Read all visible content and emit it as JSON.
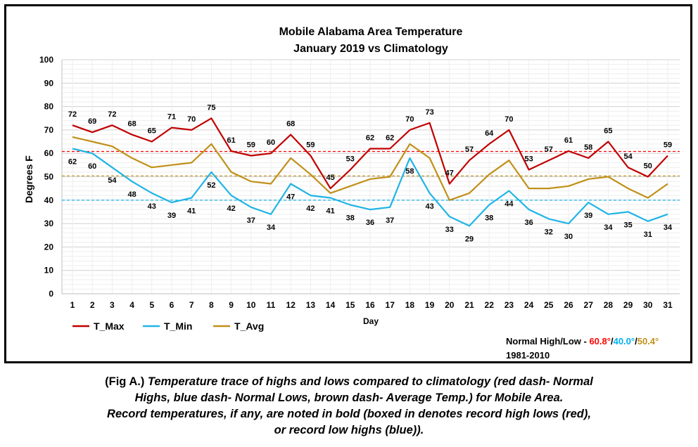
{
  "chart_data": {
    "type": "line",
    "title": [
      "Mobile Alabama Area Temperature",
      "January 2019 vs Climatology"
    ],
    "xlabel": "Day",
    "ylabel": "Degrees F",
    "ylim": [
      0,
      100
    ],
    "yticks": [
      0,
      10,
      20,
      30,
      40,
      50,
      60,
      70,
      80,
      90,
      100
    ],
    "grid": true,
    "legend_position": "bottom-left",
    "x": [
      1,
      2,
      3,
      4,
      5,
      6,
      7,
      8,
      9,
      10,
      11,
      12,
      13,
      14,
      15,
      16,
      17,
      18,
      19,
      20,
      21,
      22,
      23,
      24,
      25,
      26,
      27,
      28,
      29,
      30,
      31
    ],
    "series": [
      {
        "name": "T_Max",
        "color": "#c00000",
        "values": [
          72,
          69,
          72,
          68,
          65,
          71,
          70,
          75,
          61,
          59,
          60,
          68,
          59,
          45,
          53,
          62,
          62,
          70,
          73,
          47,
          57,
          64,
          70,
          53,
          57,
          61,
          58,
          65,
          54,
          50,
          59
        ]
      },
      {
        "name": "T_Min",
        "color": "#1fb4e6",
        "values": [
          62,
          60,
          54,
          48,
          43,
          39,
          41,
          52,
          42,
          37,
          34,
          47,
          42,
          41,
          38,
          36,
          37,
          58,
          43,
          33,
          29,
          38,
          44,
          36,
          32,
          30,
          39,
          34,
          35,
          31,
          34
        ]
      },
      {
        "name": "T_Avg",
        "color": "#c09018",
        "values": [
          67,
          65,
          63,
          58,
          54,
          55,
          56,
          64,
          52,
          48,
          47,
          58,
          51,
          43,
          46,
          49,
          50,
          64,
          58,
          40,
          43,
          51,
          57,
          45,
          45,
          46,
          49,
          50,
          45,
          41,
          47
        ]
      }
    ],
    "normals": [
      {
        "value": 60.8,
        "color": "#ff0000"
      },
      {
        "value": 40.0,
        "color": "#00b0f0"
      },
      {
        "value": 50.4,
        "color": "#c09018"
      }
    ]
  },
  "normals_label": {
    "prefix": "Normal High/Low - ",
    "high": "60.8°",
    "sep1": "/",
    "low": "40.0°",
    "sep2": "/",
    "avg": "50.4°",
    "period": "1981-2010"
  },
  "legend": {
    "max": "T_Max",
    "min": "T_Min",
    "avg": "T_Avg"
  },
  "caption": {
    "fig": "(Fig A.)",
    "line1": " Temperature trace of highs and lows compared to climatology (red dash- Normal",
    "line2": "Highs, blue dash- Normal Lows, brown dash- Average Temp.) for Mobile Area.",
    "line3": "Record temperatures, if any, are noted in bold (boxed in denotes record high lows (red),",
    "line4": "or record low highs (blue))."
  }
}
